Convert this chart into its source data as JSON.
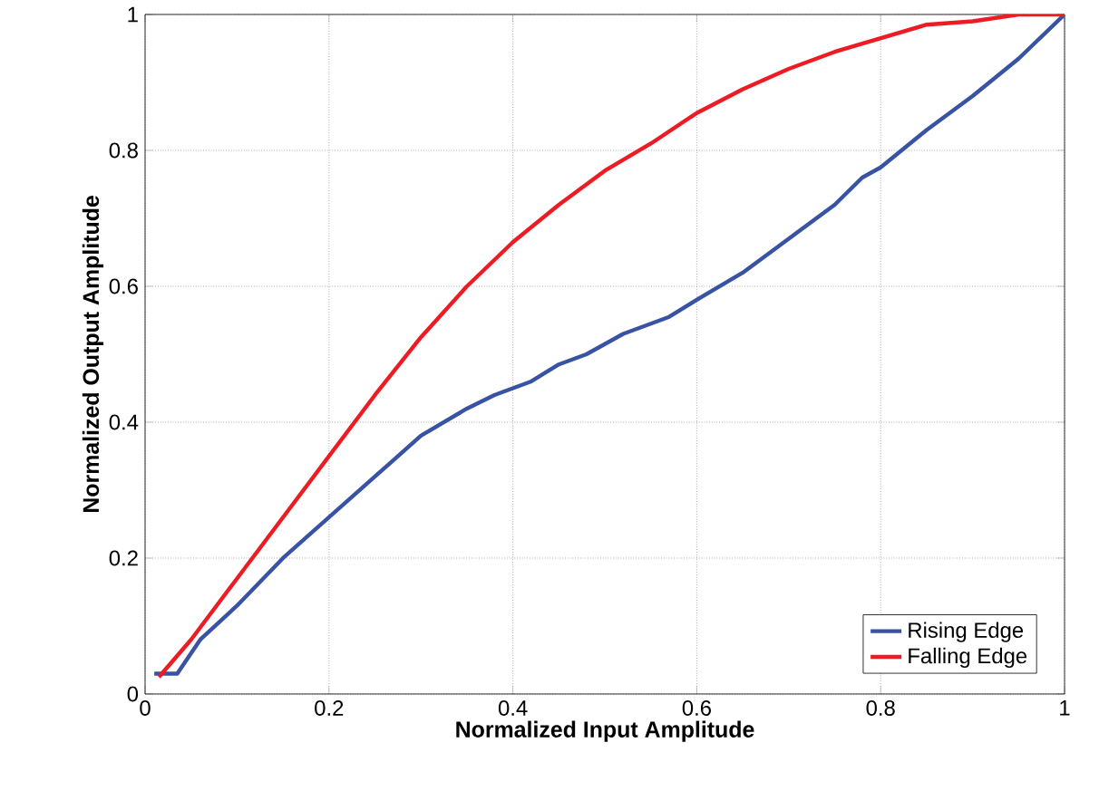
{
  "chart_data": {
    "type": "line",
    "xlabel": "Normalized Input Amplitude",
    "ylabel": "Normalized Output Amplitude",
    "xlim": [
      0,
      1
    ],
    "ylim": [
      0,
      1
    ],
    "xticks": [
      0,
      0.2,
      0.4,
      0.6,
      0.8,
      1
    ],
    "yticks": [
      0,
      0.2,
      0.4,
      0.6,
      0.8,
      1
    ],
    "grid": true,
    "legend": "bottom right",
    "line_style": "solid",
    "series": [
      {
        "name": "Rising Edge",
        "color": "#3953a4",
        "x": [
          0.01,
          0.035,
          0.06,
          0.1,
          0.15,
          0.2,
          0.25,
          0.3,
          0.35,
          0.38,
          0.42,
          0.45,
          0.48,
          0.52,
          0.57,
          0.6,
          0.65,
          0.7,
          0.75,
          0.78,
          0.8,
          0.85,
          0.9,
          0.95,
          1.0
        ],
        "values": [
          0.03,
          0.03,
          0.08,
          0.13,
          0.2,
          0.26,
          0.32,
          0.38,
          0.42,
          0.44,
          0.46,
          0.485,
          0.5,
          0.53,
          0.555,
          0.58,
          0.62,
          0.67,
          0.72,
          0.76,
          0.775,
          0.83,
          0.88,
          0.935,
          1.0
        ]
      },
      {
        "name": "Falling Edge",
        "color": "#ed1c24",
        "x": [
          0.015,
          0.05,
          0.1,
          0.15,
          0.2,
          0.25,
          0.3,
          0.35,
          0.4,
          0.45,
          0.5,
          0.55,
          0.6,
          0.65,
          0.7,
          0.75,
          0.8,
          0.85,
          0.9,
          0.95,
          1.0
        ],
        "values": [
          0.025,
          0.08,
          0.17,
          0.26,
          0.35,
          0.44,
          0.525,
          0.6,
          0.665,
          0.72,
          0.77,
          0.81,
          0.855,
          0.89,
          0.92,
          0.945,
          0.965,
          0.985,
          0.99,
          1.0,
          1.0
        ]
      }
    ]
  }
}
